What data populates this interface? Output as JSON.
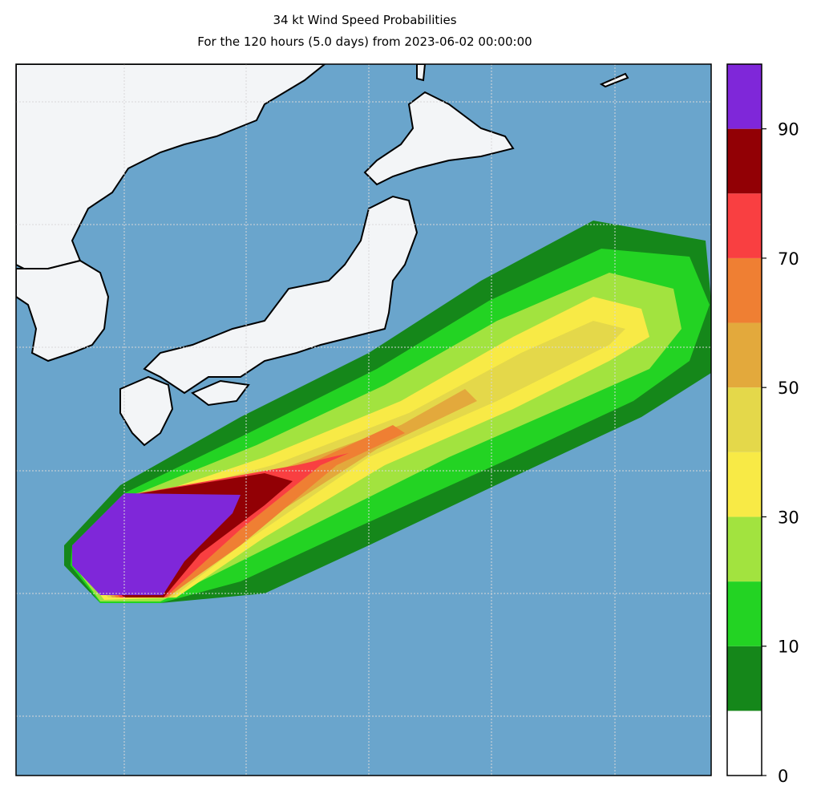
{
  "header": {
    "title": "34 kt Wind Speed Probabilities",
    "subtitle": "For the 120 hours (5.0 days) from 2023-06-02 00:00:00"
  },
  "colorbar": {
    "levels": [
      0,
      5,
      10,
      20,
      30,
      40,
      50,
      60,
      70,
      80,
      90,
      100
    ],
    "colors": [
      "#ffffff",
      "#15871a",
      "#23d323",
      "#a2e33f",
      "#f8ea46",
      "#e4d84a",
      "#e3a93c",
      "#ef7f33",
      "#f93f41",
      "#920005",
      "#7f27d9"
    ],
    "ticks": [
      0,
      10,
      30,
      50,
      70,
      90
    ]
  }
}
